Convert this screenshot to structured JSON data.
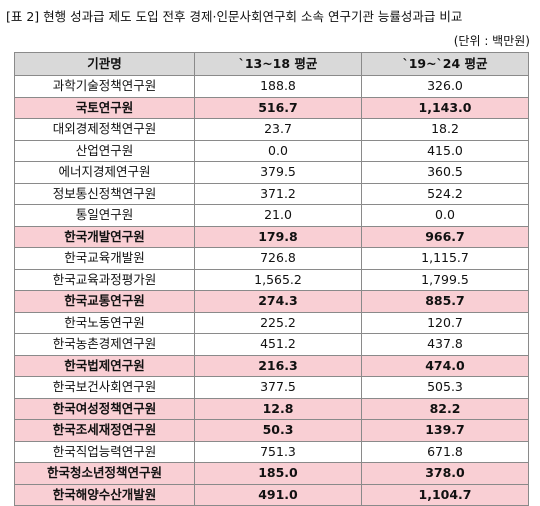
{
  "title": "[표 2] 현행 성과급 제도 도입 전후 경제·인문사회연구회 소속 연구기관 능률성과급 비교",
  "unit": "(단위 : 백만원)",
  "headers": [
    "기관명",
    "`13~18 평균",
    "`19~`24 평균"
  ],
  "highlight_color": "#f9cfd4",
  "rows": [
    {
      "name": "과학기술정책연구원",
      "before": "188.8",
      "after": "326.0",
      "hl": false
    },
    {
      "name": "국토연구원",
      "before": "516.7",
      "after": "1,143.0",
      "hl": true
    },
    {
      "name": "대외경제정책연구원",
      "before": "23.7",
      "after": "18.2",
      "hl": false
    },
    {
      "name": "산업연구원",
      "before": "0.0",
      "after": "415.0",
      "hl": false
    },
    {
      "name": "에너지경제연구원",
      "before": "379.5",
      "after": "360.5",
      "hl": false
    },
    {
      "name": "정보통신정책연구원",
      "before": "371.2",
      "after": "524.2",
      "hl": false
    },
    {
      "name": "통일연구원",
      "before": "21.0",
      "after": "0.0",
      "hl": false
    },
    {
      "name": "한국개발연구원",
      "before": "179.8",
      "after": "966.7",
      "hl": true
    },
    {
      "name": "한국교육개발원",
      "before": "726.8",
      "after": "1,115.7",
      "hl": false
    },
    {
      "name": "한국교육과정평가원",
      "before": "1,565.2",
      "after": "1,799.5",
      "hl": false
    },
    {
      "name": "한국교통연구원",
      "before": "274.3",
      "after": "885.7",
      "hl": true
    },
    {
      "name": "한국노동연구원",
      "before": "225.2",
      "after": "120.7",
      "hl": false
    },
    {
      "name": "한국농촌경제연구원",
      "before": "451.2",
      "after": "437.8",
      "hl": false
    },
    {
      "name": "한국법제연구원",
      "before": "216.3",
      "after": "474.0",
      "hl": true
    },
    {
      "name": "한국보건사회연구원",
      "before": "377.5",
      "after": "505.3",
      "hl": false
    },
    {
      "name": "한국여성정책연구원",
      "before": "12.8",
      "after": "82.2",
      "hl": true
    },
    {
      "name": "한국조세재정연구원",
      "before": "50.3",
      "after": "139.7",
      "hl": true
    },
    {
      "name": "한국직업능력연구원",
      "before": "751.3",
      "after": "671.8",
      "hl": false
    },
    {
      "name": "한국청소년정책연구원",
      "before": "185.0",
      "after": "378.0",
      "hl": true
    },
    {
      "name": "한국해양수산개발원",
      "before": "491.0",
      "after": "1,104.7",
      "hl": true
    }
  ]
}
